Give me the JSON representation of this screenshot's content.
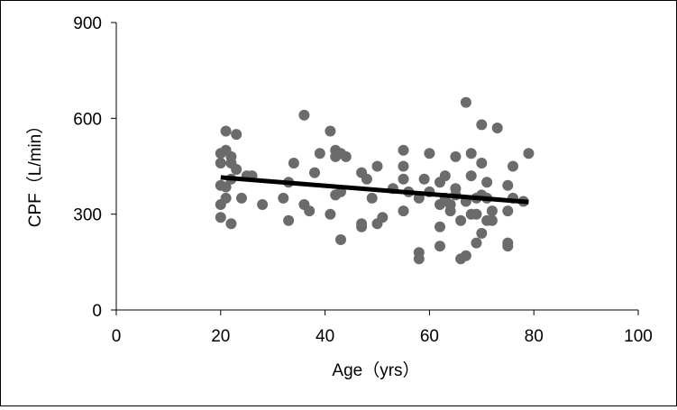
{
  "chart_data": {
    "type": "scatter",
    "title": "",
    "xlabel": "Age（yrs）",
    "ylabel": "CPF（L/min）",
    "xlim": [
      0,
      100
    ],
    "ylim": [
      0,
      900
    ],
    "xticks": [
      0,
      20,
      40,
      60,
      80,
      100
    ],
    "yticks": [
      0,
      300,
      600,
      900
    ],
    "grid": false,
    "legend": "none",
    "colors": {
      "points": "#6b6b6b",
      "trendline": "#000000",
      "axis": "#000000"
    },
    "series": [
      {
        "points": [
          [
            20,
            490
          ],
          [
            20,
            460
          ],
          [
            20,
            390
          ],
          [
            20,
            330
          ],
          [
            20,
            290
          ],
          [
            21,
            560
          ],
          [
            21,
            500
          ],
          [
            21,
            350
          ],
          [
            21,
            385
          ],
          [
            22,
            480
          ],
          [
            22,
            460
          ],
          [
            22,
            410
          ],
          [
            22,
            270
          ],
          [
            23,
            550
          ],
          [
            23,
            440
          ],
          [
            24,
            350
          ],
          [
            25,
            420
          ],
          [
            26,
            420
          ],
          [
            28,
            330
          ],
          [
            32,
            350
          ],
          [
            33,
            400
          ],
          [
            33,
            280
          ],
          [
            34,
            460
          ],
          [
            36,
            610
          ],
          [
            36,
            330
          ],
          [
            37,
            310
          ],
          [
            38,
            430
          ],
          [
            39,
            490
          ],
          [
            41,
            560
          ],
          [
            41,
            300
          ],
          [
            42,
            500
          ],
          [
            42,
            480
          ],
          [
            42,
            360
          ],
          [
            43,
            490
          ],
          [
            43,
            370
          ],
          [
            43,
            220
          ],
          [
            44,
            480
          ],
          [
            47,
            430
          ],
          [
            47,
            270
          ],
          [
            47,
            260
          ],
          [
            48,
            410
          ],
          [
            49,
            350
          ],
          [
            50,
            450
          ],
          [
            50,
            270
          ],
          [
            51,
            290
          ],
          [
            53,
            380
          ],
          [
            55,
            500
          ],
          [
            55,
            450
          ],
          [
            55,
            410
          ],
          [
            55,
            310
          ],
          [
            56,
            370
          ],
          [
            58,
            350
          ],
          [
            58,
            180
          ],
          [
            58,
            160
          ],
          [
            59,
            410
          ],
          [
            60,
            490
          ],
          [
            60,
            370
          ],
          [
            62,
            400
          ],
          [
            62,
            330
          ],
          [
            62,
            260
          ],
          [
            62,
            200
          ],
          [
            63,
            420
          ],
          [
            63,
            350
          ],
          [
            64,
            330
          ],
          [
            64,
            310
          ],
          [
            65,
            480
          ],
          [
            65,
            380
          ],
          [
            65,
            360
          ],
          [
            66,
            280
          ],
          [
            66,
            160
          ],
          [
            67,
            650
          ],
          [
            67,
            340
          ],
          [
            67,
            170
          ],
          [
            68,
            490
          ],
          [
            68,
            420
          ],
          [
            68,
            300
          ],
          [
            69,
            350
          ],
          [
            69,
            300
          ],
          [
            69,
            210
          ],
          [
            70,
            580
          ],
          [
            70,
            460
          ],
          [
            70,
            360
          ],
          [
            70,
            240
          ],
          [
            71,
            400
          ],
          [
            71,
            350
          ],
          [
            71,
            280
          ],
          [
            72,
            310
          ],
          [
            72,
            280
          ],
          [
            73,
            570
          ],
          [
            75,
            390
          ],
          [
            75,
            310
          ],
          [
            75,
            210
          ],
          [
            75,
            200
          ],
          [
            76,
            450
          ],
          [
            76,
            350
          ],
          [
            78,
            340
          ],
          [
            79,
            490
          ]
        ]
      }
    ],
    "trendline": {
      "x": [
        20,
        79
      ],
      "y": [
        415,
        338
      ]
    }
  }
}
